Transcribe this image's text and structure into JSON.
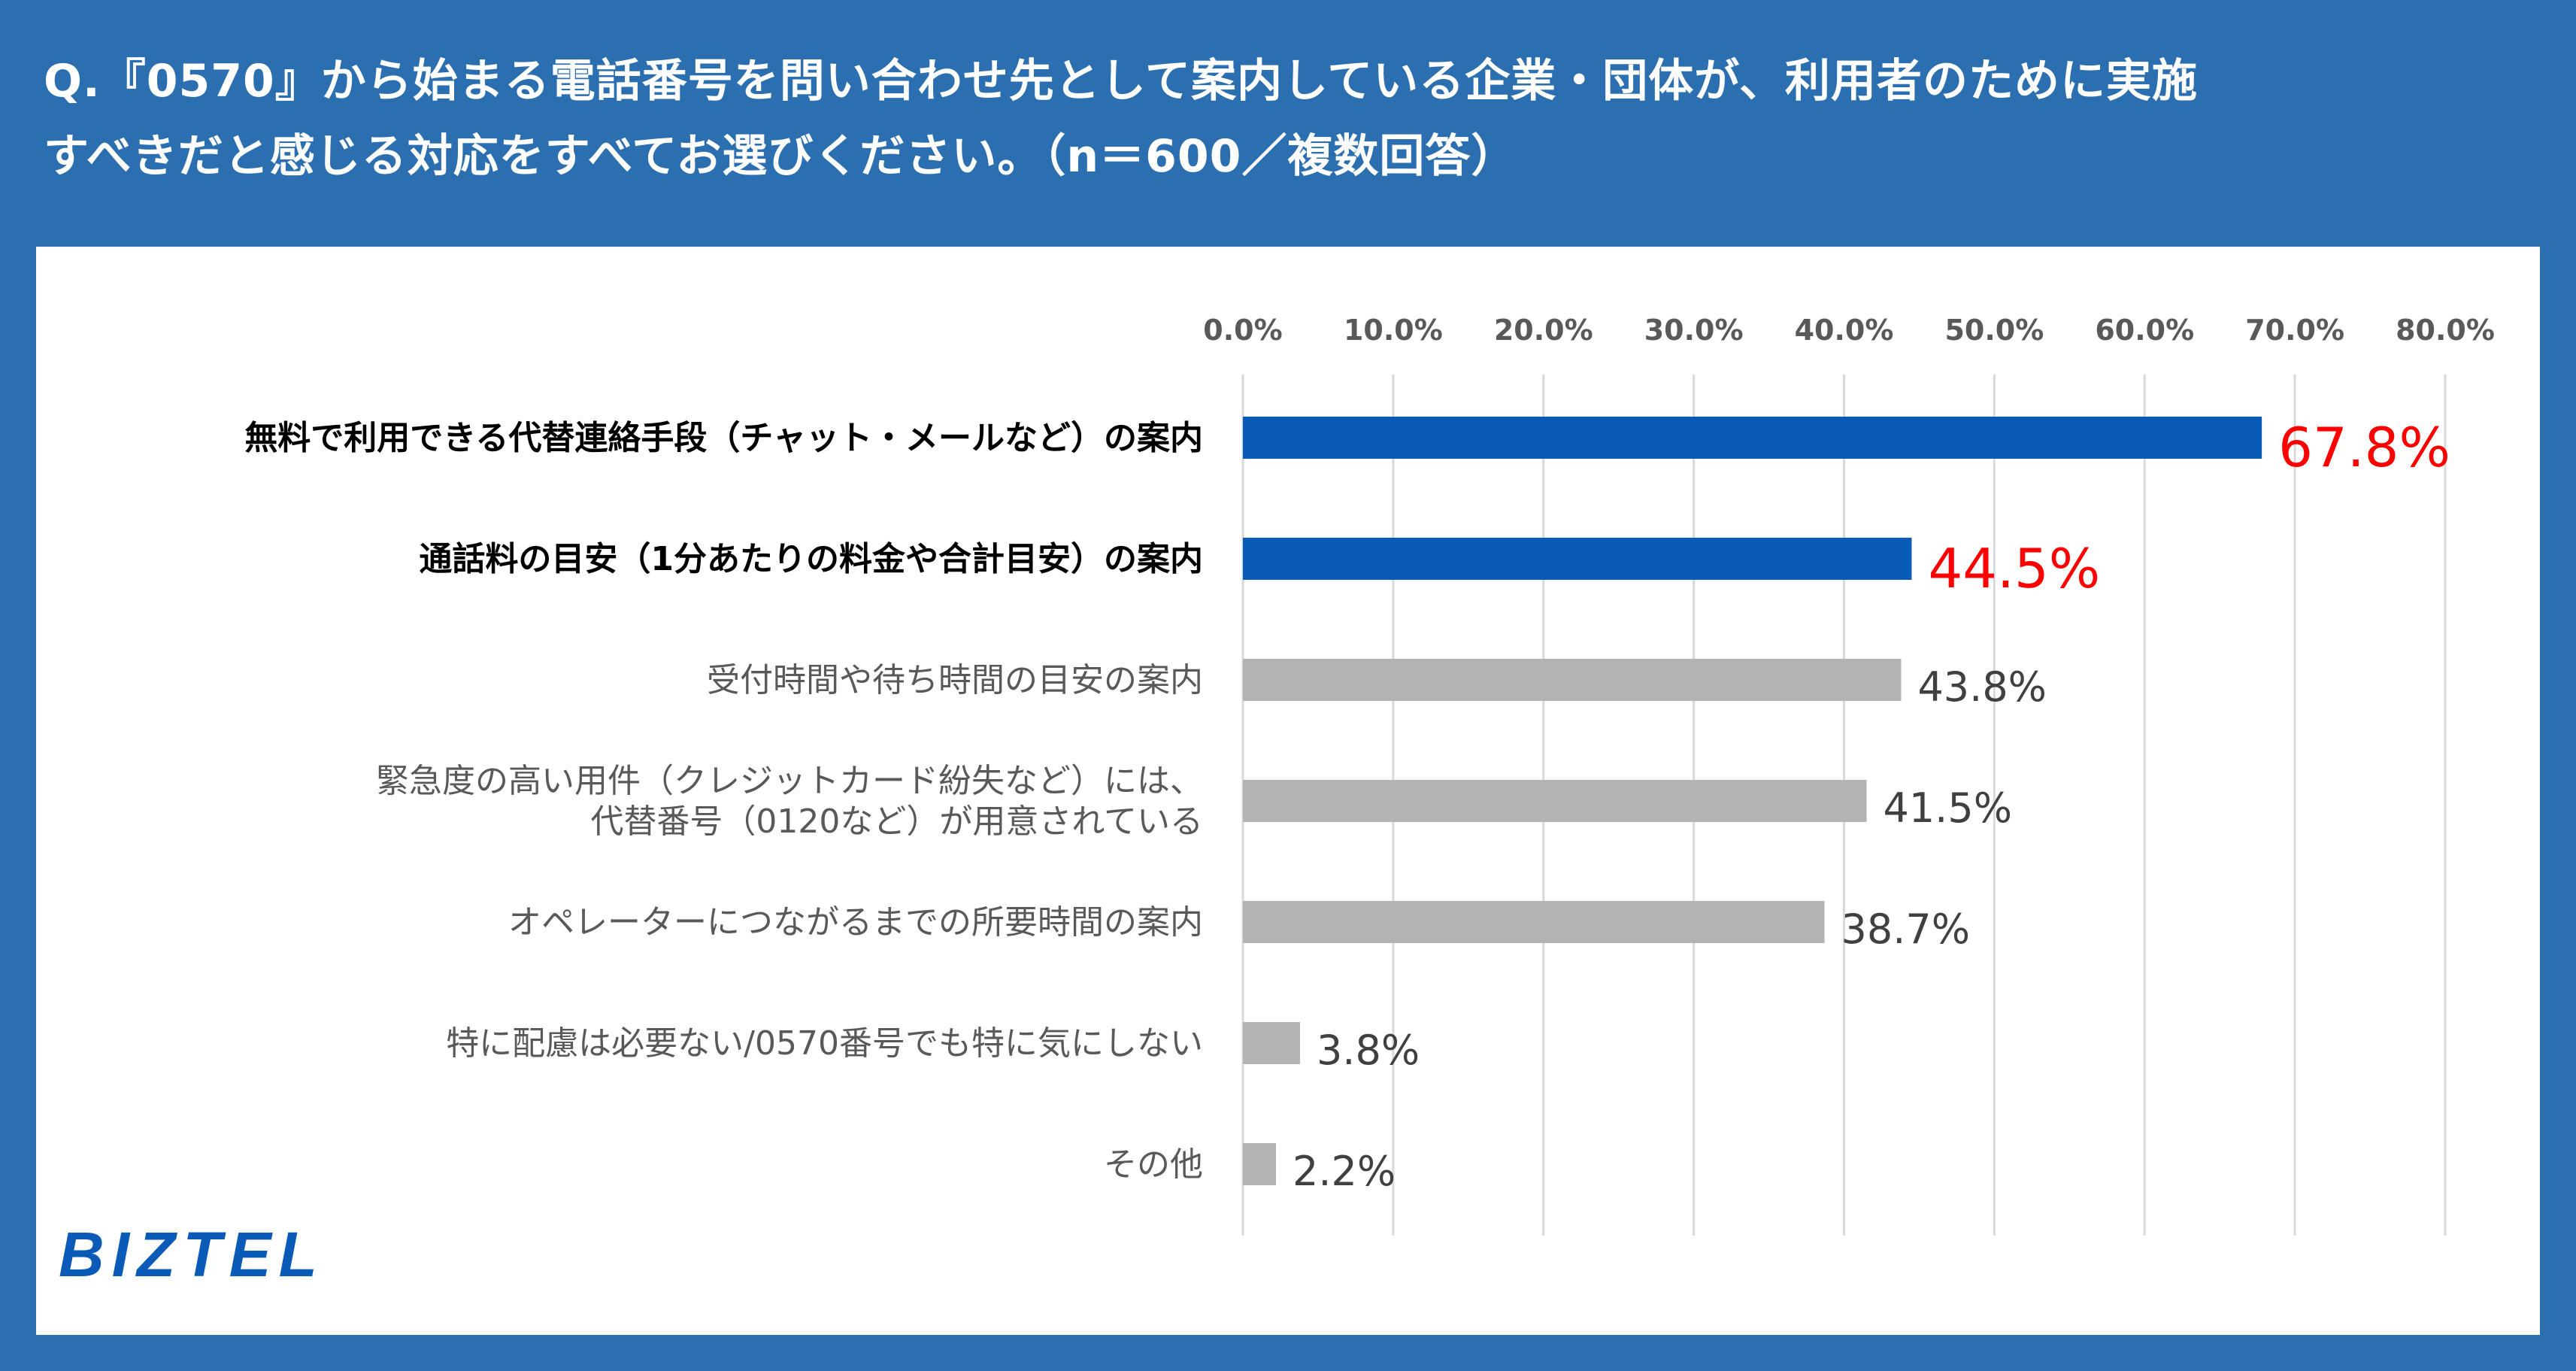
{
  "title": {
    "line1": "Q.『0570』から始まる電話番号を問い合わせ先として案内している企業・団体が、利用者のために実施",
    "line2": "すべきだと感じる対応をすべてお選びください。（n＝600／複数回答）"
  },
  "logo": "BIZTEL",
  "colors": {
    "background": "#2b6fb0",
    "highlight_bar": "#0a5bb8",
    "normal_bar": "#b3b3b3",
    "highlight_value": "#ff0000",
    "grid": "#d9d9d9"
  },
  "chart_data": {
    "type": "bar",
    "orientation": "horizontal",
    "xlim": [
      0,
      80
    ],
    "ticks": [
      0,
      10,
      20,
      30,
      40,
      50,
      60,
      70,
      80
    ],
    "tick_labels": [
      "0.0%",
      "10.0%",
      "20.0%",
      "30.0%",
      "40.0%",
      "50.0%",
      "60.0%",
      "70.0%",
      "80.0%"
    ],
    "grid": true,
    "categories": [
      [
        "無料で利用できる代替連絡手段（チャット・メールなど）の案内"
      ],
      [
        "通話料の目安（1分あたりの料金や合計目安）の案内"
      ],
      [
        "受付時間や待ち時間の目安の案内"
      ],
      [
        "緊急度の高い用件（クレジットカード紛失など）には、",
        "代替番号（0120など）が用意されている"
      ],
      [
        "オペレーターにつながるまでの所要時間の案内"
      ],
      [
        "特に配慮は必要ない/0570番号でも特に気にしない"
      ],
      [
        "その他"
      ]
    ],
    "values": [
      67.8,
      44.5,
      43.8,
      41.5,
      38.7,
      3.8,
      2.2
    ],
    "value_labels": [
      "67.8%",
      "44.5%",
      "43.8%",
      "41.5%",
      "38.7%",
      "3.8%",
      "2.2%"
    ],
    "highlighted": [
      true,
      true,
      false,
      false,
      false,
      false,
      false
    ]
  }
}
